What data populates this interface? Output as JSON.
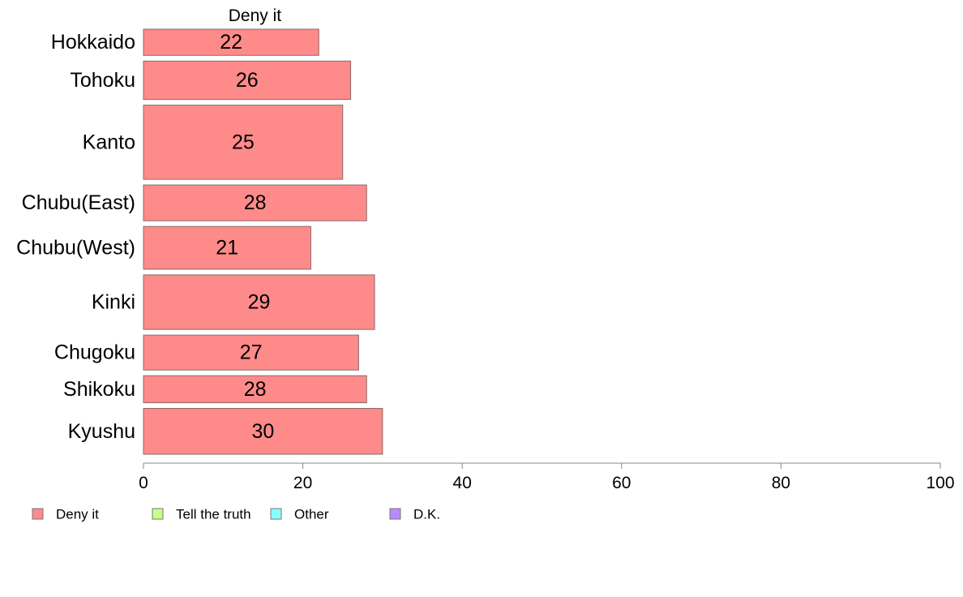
{
  "chart_data": {
    "type": "bar",
    "orientation": "horizontal",
    "stacked": true,
    "categories": [
      "Hokkaido",
      "Tohoku",
      "Kanto",
      "Chubu(East)",
      "Chubu(West)",
      "Kinki",
      "Chugoku",
      "Shikoku",
      "Kyushu"
    ],
    "series": [
      {
        "name": "Deny it",
        "color": "#ff8a8a",
        "values": [
          22,
          26,
          25,
          28,
          21,
          29,
          27,
          28,
          30
        ]
      }
    ],
    "series_title": "Deny it",
    "xlim": [
      0,
      100
    ],
    "xticks": [
      0,
      20,
      40,
      60,
      80,
      100
    ],
    "tick_labels": [
      "0",
      "20",
      "40",
      "60",
      "80",
      "100"
    ],
    "bar_relative_widths": [
      0.6,
      0.88,
      1.7,
      0.82,
      0.98,
      1.25,
      0.8,
      0.62,
      1.05
    ],
    "grid": false,
    "legend": {
      "placement": "bottom-left",
      "items": [
        {
          "label": "Deny it",
          "color": "#ff8a8a"
        },
        {
          "label": "Tell the truth",
          "color": "#c8ff8a"
        },
        {
          "label": "Other",
          "color": "#8affff"
        },
        {
          "label": "D.K.",
          "color": "#b98aff"
        }
      ]
    }
  }
}
